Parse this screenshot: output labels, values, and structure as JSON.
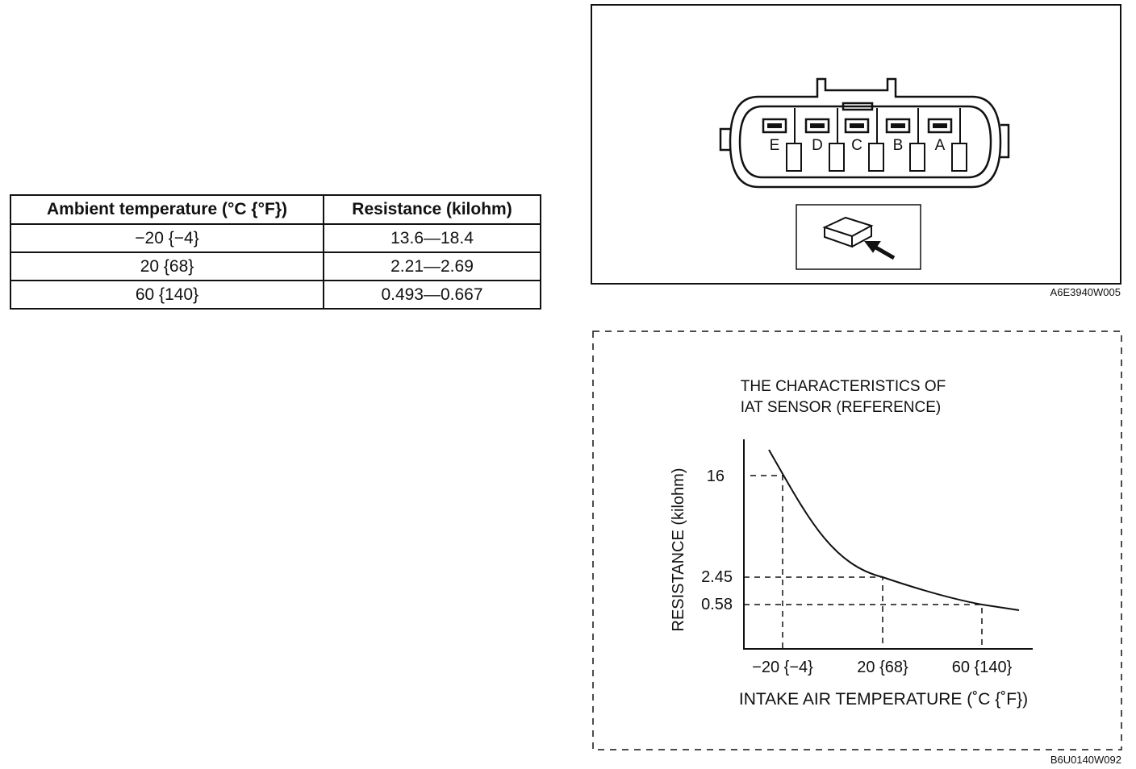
{
  "table": {
    "header": [
      "Ambient temperature (°C {°F})",
      "Resistance (kilohm)"
    ],
    "rows": [
      [
        "−20 {−4}",
        "13.6—18.4"
      ],
      [
        "20 {68}",
        "2.21—2.69"
      ],
      [
        "60 {140}",
        "0.493—0.667"
      ]
    ]
  },
  "connector": {
    "terminals": [
      "E",
      "D",
      "C",
      "B",
      "A"
    ],
    "code": "A6E3940W005"
  },
  "graph": {
    "title": [
      "THE CHARACTERISTICS OF",
      "IAT SENSOR (REFERENCE)"
    ],
    "y_label": "RESISTANCE (kilohm)",
    "x_label": "INTAKE AIR TEMPERATURE (˚C {˚F})",
    "y_ticks": [
      "16",
      "2.45",
      "0.58"
    ],
    "x_ticks": [
      "−20 {−4}",
      "20 {68}",
      "60 {140}"
    ],
    "code": "B6U0140W092"
  }
}
